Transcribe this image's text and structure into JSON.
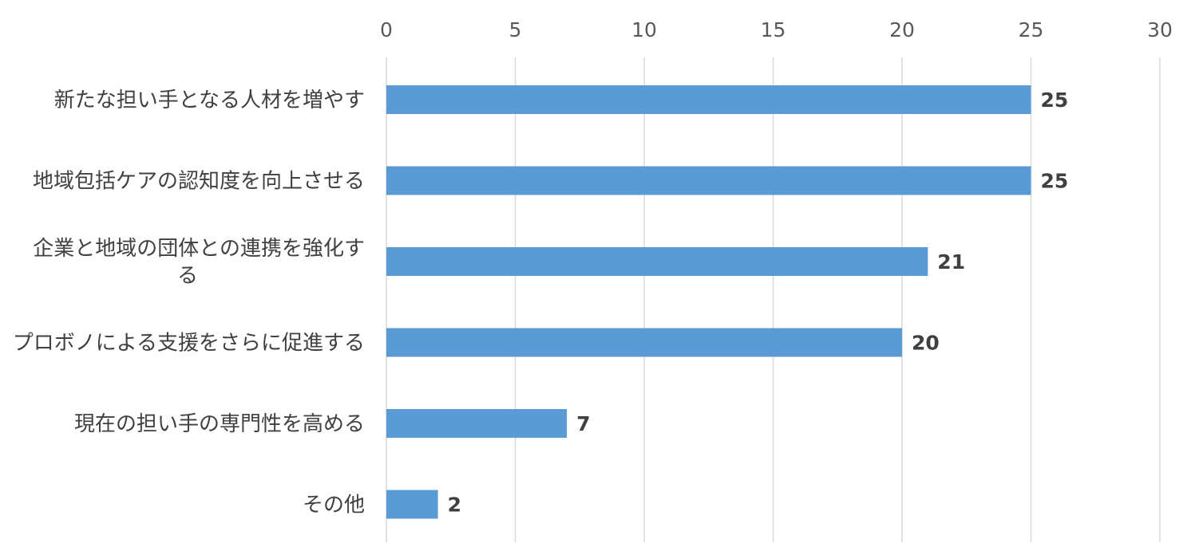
{
  "chart_data": {
    "type": "bar",
    "orientation": "horizontal",
    "categories": [
      [
        "新たな担い手となる人材を増やす"
      ],
      [
        "地域包括ケアの認知度を向上させる"
      ],
      [
        "企業と地域の団体との連携を強化す",
        "る"
      ],
      [
        "プロボノによる支援をさらに促進する"
      ],
      [
        "現在の担い手の専門性を高める"
      ],
      [
        "その他"
      ]
    ],
    "values": [
      25,
      25,
      21,
      20,
      7,
      2
    ],
    "xlim": [
      0,
      30
    ],
    "x_ticks": [
      "0",
      "5",
      "10",
      "15",
      "20",
      "25",
      "30"
    ],
    "x_axis_position": "top",
    "grid": true,
    "legend": "none",
    "bar_color": "#5B9BD5",
    "grid_color": "#D9D9D9",
    "title": "",
    "xlabel": "",
    "ylabel": ""
  }
}
